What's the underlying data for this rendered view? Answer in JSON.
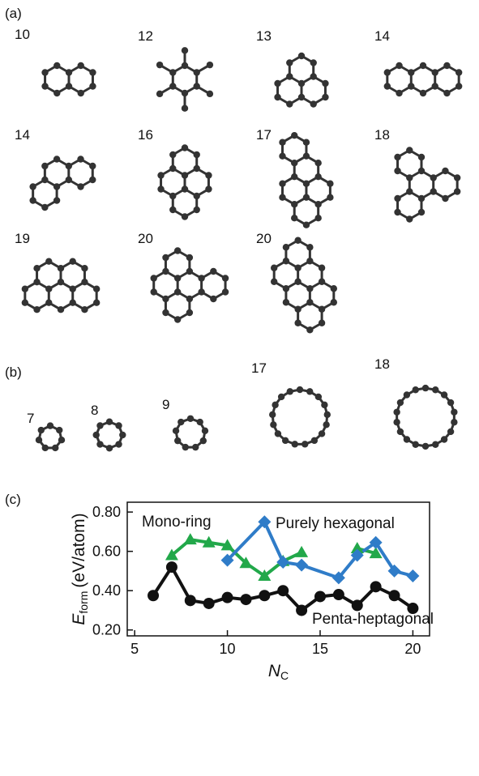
{
  "panels": {
    "a": "(a)",
    "b": "(b)",
    "c": "(c)"
  },
  "molecules_a": [
    "10",
    "12",
    "13",
    "14",
    "14",
    "16",
    "17",
    "18",
    "19",
    "20",
    "20"
  ],
  "molecules_b": [
    "7",
    "8",
    "9",
    "17",
    "18"
  ],
  "chart_data": {
    "type": "line",
    "xlabel": {
      "main": "N",
      "sub": "C"
    },
    "ylabel": {
      "main": "E",
      "sub": "form",
      "unit": "(eV/atom)"
    },
    "xlim": [
      4.6,
      20.9
    ],
    "ylim": [
      0.17,
      0.85
    ],
    "xticks": [
      5,
      10,
      15,
      20
    ],
    "yticks": [
      {
        "value": 0.2,
        "label": "0.20"
      },
      {
        "value": 0.4,
        "label": "0.40"
      },
      {
        "value": 0.6,
        "label": "0.60"
      },
      {
        "value": 0.8,
        "label": "0.80"
      }
    ],
    "series": [
      {
        "name": "Penta-heptagonal",
        "color": "#111111",
        "marker": "circle",
        "x": [
          6,
          7,
          8,
          9,
          10,
          11,
          12,
          13,
          14,
          15,
          16,
          17,
          18,
          19,
          20
        ],
        "values": [
          0.375,
          0.52,
          0.35,
          0.335,
          0.365,
          0.355,
          0.375,
          0.4,
          0.3,
          0.37,
          0.38,
          0.325,
          0.42,
          0.375,
          0.31
        ]
      },
      {
        "name": "Mono-ring",
        "color": "#22a84a",
        "marker": "triangle",
        "x": [
          7,
          8,
          9,
          10,
          11,
          12,
          13,
          14,
          15,
          16,
          17,
          18
        ],
        "values": [
          0.58,
          0.66,
          0.645,
          0.63,
          0.54,
          0.475,
          0.55,
          0.595,
          null,
          null,
          0.615,
          0.59
        ]
      },
      {
        "name": "Purely hexagonal",
        "color": "#2f7cc8",
        "marker": "diamond",
        "x": [
          10,
          12,
          13,
          14,
          16,
          17,
          18,
          19,
          20
        ],
        "values": [
          0.555,
          0.75,
          0.545,
          0.53,
          0.465,
          0.58,
          0.645,
          0.5,
          0.475
        ]
      }
    ]
  }
}
